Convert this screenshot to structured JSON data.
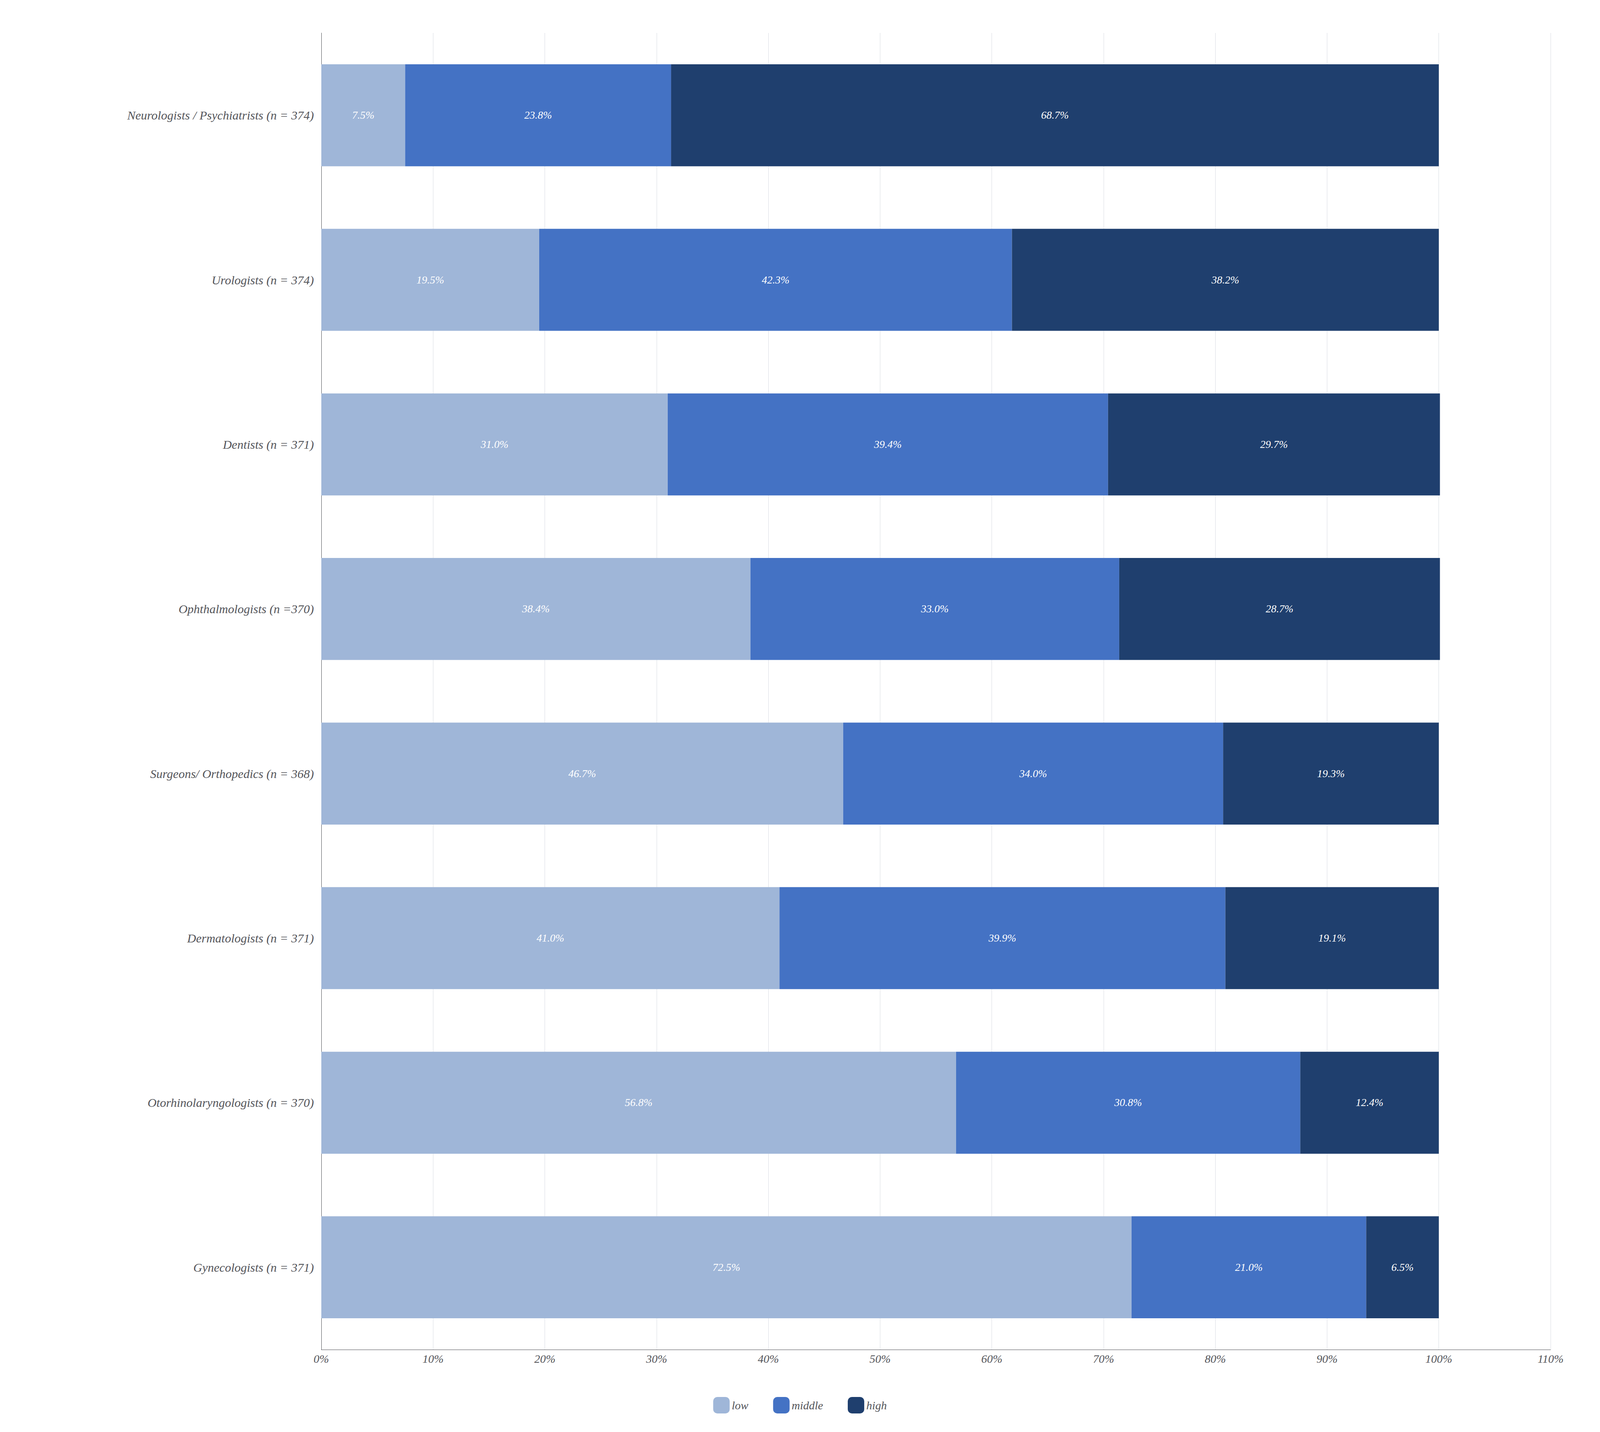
{
  "chart_data": {
    "type": "bar",
    "orientation": "horizontal",
    "stacked": true,
    "data_labels": true,
    "grid": true,
    "legend": "bottom",
    "categories": [
      "Neurologists / Psychiatrists (n = 374)",
      "Urologists (n = 374)",
      "Dentists (n = 371)",
      "Ophthalmologists (n =370)",
      "Surgeons/ Orthopedics (n = 368)",
      "Dermatologists (n = 371)",
      "Otorhinolaryngologists (n = 370)",
      "Gynecologists (n = 371)"
    ],
    "series": [
      {
        "name": "low",
        "color": "#9fb6d8",
        "values": [
          7.5,
          19.5,
          31.0,
          38.4,
          46.7,
          41.0,
          56.8,
          72.5
        ],
        "value_labels": [
          "7.5%",
          "19.5%",
          "31.0%",
          "38.4%",
          "46.7%",
          "41.0%",
          "56.8%",
          "72.5%"
        ]
      },
      {
        "name": "middle",
        "color": "#4472c4",
        "values": [
          23.8,
          42.3,
          39.4,
          33.0,
          34.0,
          39.9,
          30.8,
          21.0
        ],
        "value_labels": [
          "23.8%",
          "42.3%",
          "39.4%",
          "33.0%",
          "34.0%",
          "39.9%",
          "30.8%",
          "21.0%"
        ]
      },
      {
        "name": "high",
        "color": "#1f3f6e",
        "values": [
          68.7,
          38.2,
          29.7,
          28.7,
          19.3,
          19.1,
          12.4,
          6.5
        ],
        "value_labels": [
          "68.7%",
          "38.2%",
          "29.7%",
          "28.7%",
          "19.3%",
          "19.1%",
          "12.4%",
          "6.5%"
        ]
      }
    ],
    "xlim": [
      0,
      110
    ],
    "xticks": [
      {
        "value": 0,
        "label": "0%"
      },
      {
        "value": 10,
        "label": "10%"
      },
      {
        "value": 20,
        "label": "20%"
      },
      {
        "value": 30,
        "label": "30%"
      },
      {
        "value": 40,
        "label": "40%"
      },
      {
        "value": 50,
        "label": "50%"
      },
      {
        "value": 60,
        "label": "60%"
      },
      {
        "value": 70,
        "label": "70%"
      },
      {
        "value": 80,
        "label": "80%"
      },
      {
        "value": 90,
        "label": "90%"
      },
      {
        "value": 100,
        "label": "100%"
      },
      {
        "value": 110,
        "label": "110%"
      }
    ]
  }
}
